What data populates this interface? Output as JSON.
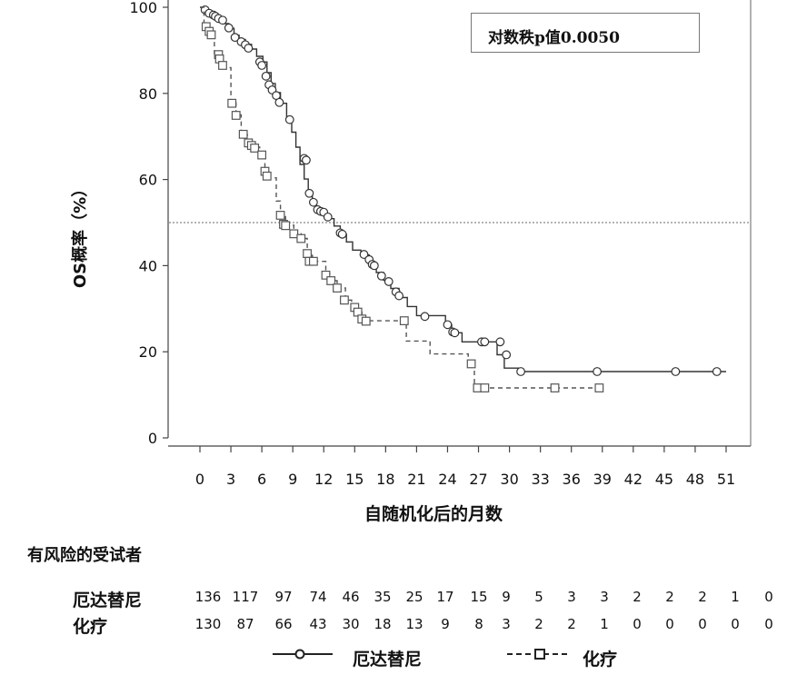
{
  "chart_data": {
    "type": "line",
    "title": "",
    "xlabel": "自随机化后的月数",
    "ylabel": "OS概率（%）",
    "xlim": [
      0,
      51
    ],
    "ylim": [
      0,
      100
    ],
    "x_ticks": [
      0,
      3,
      6,
      9,
      12,
      15,
      18,
      21,
      24,
      27,
      30,
      33,
      36,
      39,
      42,
      45,
      48,
      51
    ],
    "y_ticks": [
      0,
      20,
      40,
      60,
      80,
      100
    ],
    "reference_line": 50,
    "annotation": "对数秩p值0.0050",
    "series": [
      {
        "name": "厄达替尼",
        "color": "#333333",
        "dash": "solid",
        "marker": "circle",
        "step": [
          [
            0,
            100
          ],
          [
            0.4,
            100
          ],
          [
            0.4,
            99.4
          ],
          [
            0.8,
            99.4
          ],
          [
            0.8,
            98.6
          ],
          [
            1.2,
            98.6
          ],
          [
            1.2,
            97.9
          ],
          [
            1.7,
            97.9
          ],
          [
            1.7,
            97.1
          ],
          [
            2.3,
            97.1
          ],
          [
            2.3,
            96.2
          ],
          [
            2.8,
            96.2
          ],
          [
            2.8,
            95.1
          ],
          [
            3.3,
            95.1
          ],
          [
            3.3,
            93.5
          ],
          [
            3.8,
            93.5
          ],
          [
            3.8,
            92.5
          ],
          [
            4.4,
            92.5
          ],
          [
            4.4,
            91.4
          ],
          [
            5.0,
            91.4
          ],
          [
            5.0,
            90.3
          ],
          [
            5.5,
            90.3
          ],
          [
            5.5,
            88.6
          ],
          [
            6.1,
            88.6
          ],
          [
            6.1,
            87.3
          ],
          [
            6.5,
            87.3
          ],
          [
            6.5,
            84.8
          ],
          [
            6.9,
            84.8
          ],
          [
            6.9,
            82.3
          ],
          [
            7.3,
            82.3
          ],
          [
            7.3,
            80.2
          ],
          [
            7.8,
            80.2
          ],
          [
            7.8,
            77.7
          ],
          [
            8.4,
            77.7
          ],
          [
            8.4,
            74.4
          ],
          [
            8.9,
            74.4
          ],
          [
            8.9,
            71.0
          ],
          [
            9.3,
            71.0
          ],
          [
            9.3,
            67.5
          ],
          [
            9.7,
            67.5
          ],
          [
            9.7,
            63.5
          ],
          [
            10.1,
            63.5
          ],
          [
            10.1,
            60.1
          ],
          [
            10.5,
            60.1
          ],
          [
            10.5,
            56.5
          ],
          [
            10.9,
            56.5
          ],
          [
            10.9,
            54.5
          ],
          [
            11.3,
            54.5
          ],
          [
            11.3,
            53.2
          ],
          [
            11.8,
            53.2
          ],
          [
            11.8,
            52.0
          ],
          [
            12.4,
            52.0
          ],
          [
            12.4,
            50.9
          ],
          [
            13.0,
            50.9
          ],
          [
            13.0,
            49.2
          ],
          [
            13.6,
            49.2
          ],
          [
            13.6,
            47.3
          ],
          [
            14.2,
            47.3
          ],
          [
            14.2,
            45.5
          ],
          [
            14.8,
            45.5
          ],
          [
            14.8,
            43.6
          ],
          [
            15.6,
            43.6
          ],
          [
            15.6,
            42.5
          ],
          [
            16.4,
            42.5
          ],
          [
            16.4,
            40.6
          ],
          [
            17.1,
            40.6
          ],
          [
            17.1,
            38.4
          ],
          [
            17.8,
            38.4
          ],
          [
            17.8,
            36.6
          ],
          [
            18.5,
            36.6
          ],
          [
            18.5,
            34.7
          ],
          [
            19.3,
            34.7
          ],
          [
            19.3,
            32.6
          ],
          [
            20.1,
            32.6
          ],
          [
            20.1,
            30.5
          ],
          [
            21.0,
            30.5
          ],
          [
            21.0,
            28.4
          ],
          [
            23.8,
            28.4
          ],
          [
            23.8,
            26.3
          ],
          [
            24.4,
            26.3
          ],
          [
            24.4,
            24.4
          ],
          [
            25.4,
            24.4
          ],
          [
            25.4,
            22.3
          ],
          [
            28.8,
            22.3
          ],
          [
            28.8,
            19.3
          ],
          [
            29.5,
            19.3
          ],
          [
            29.5,
            16.2
          ],
          [
            31.0,
            16.2
          ],
          [
            31.0,
            15.4
          ],
          [
            51,
            15.4
          ]
        ],
        "markers": [
          [
            0.5,
            99.4
          ],
          [
            0.9,
            98.6
          ],
          [
            1.3,
            98.2
          ],
          [
            1.5,
            97.9
          ],
          [
            1.8,
            97.4
          ],
          [
            2.2,
            97.0
          ],
          [
            2.8,
            95.2
          ],
          [
            3.4,
            93.0
          ],
          [
            4.0,
            92.0
          ],
          [
            4.4,
            91.3
          ],
          [
            4.7,
            90.5
          ],
          [
            5.8,
            87.3
          ],
          [
            6.0,
            86.5
          ],
          [
            6.4,
            84.0
          ],
          [
            6.7,
            82.0
          ],
          [
            7.0,
            80.8
          ],
          [
            7.4,
            79.5
          ],
          [
            7.7,
            77.9
          ],
          [
            8.7,
            73.9
          ],
          [
            10.1,
            64.9
          ],
          [
            10.3,
            64.5
          ],
          [
            10.6,
            56.8
          ],
          [
            11.0,
            54.7
          ],
          [
            11.4,
            53.0
          ],
          [
            11.7,
            52.6
          ],
          [
            12.0,
            52.4
          ],
          [
            12.4,
            51.3
          ],
          [
            13.6,
            47.6
          ],
          [
            13.8,
            47.3
          ],
          [
            15.9,
            42.6
          ],
          [
            16.4,
            41.4
          ],
          [
            16.7,
            40.3
          ],
          [
            16.9,
            40.0
          ],
          [
            17.6,
            37.6
          ],
          [
            18.3,
            36.3
          ],
          [
            19.0,
            33.9
          ],
          [
            19.3,
            33.0
          ],
          [
            21.8,
            28.2
          ],
          [
            24.0,
            26.3
          ],
          [
            24.5,
            24.6
          ],
          [
            24.7,
            24.4
          ],
          [
            27.3,
            22.3
          ],
          [
            27.6,
            22.3
          ],
          [
            29.1,
            22.3
          ],
          [
            29.7,
            19.3
          ],
          [
            31.1,
            15.4
          ],
          [
            38.5,
            15.4
          ],
          [
            46.1,
            15.4
          ],
          [
            50.1,
            15.4
          ]
        ]
      },
      {
        "name": "化疗",
        "color": "#555555",
        "dash": "dashed",
        "marker": "square",
        "step": [
          [
            0,
            100
          ],
          [
            0.4,
            100
          ],
          [
            0.4,
            95.5
          ],
          [
            0.8,
            95.5
          ],
          [
            0.8,
            94.0
          ],
          [
            1.4,
            94.0
          ],
          [
            1.4,
            89.0
          ],
          [
            1.9,
            89.0
          ],
          [
            1.9,
            86.0
          ],
          [
            3.0,
            86.0
          ],
          [
            3.0,
            77.8
          ],
          [
            3.5,
            77.8
          ],
          [
            3.5,
            75.0
          ],
          [
            4.0,
            75.0
          ],
          [
            4.0,
            70.4
          ],
          [
            4.6,
            70.4
          ],
          [
            4.6,
            68.5
          ],
          [
            5.2,
            68.5
          ],
          [
            5.2,
            67.5
          ],
          [
            5.8,
            67.5
          ],
          [
            5.8,
            65.7
          ],
          [
            6.3,
            65.7
          ],
          [
            6.3,
            61.7
          ],
          [
            6.8,
            61.7
          ],
          [
            6.8,
            60.4
          ],
          [
            7.4,
            60.4
          ],
          [
            7.4,
            55.0
          ],
          [
            7.8,
            55.0
          ],
          [
            7.8,
            51.8
          ],
          [
            8.3,
            51.8
          ],
          [
            8.3,
            49.4
          ],
          [
            9.1,
            49.4
          ],
          [
            9.1,
            47.4
          ],
          [
            9.8,
            47.4
          ],
          [
            9.8,
            46.3
          ],
          [
            10.4,
            46.3
          ],
          [
            10.4,
            42.7
          ],
          [
            10.9,
            42.7
          ],
          [
            10.9,
            41.0
          ],
          [
            12.2,
            41.0
          ],
          [
            12.2,
            38.1
          ],
          [
            12.7,
            38.1
          ],
          [
            12.7,
            36.5
          ],
          [
            13.3,
            36.5
          ],
          [
            13.3,
            34.8
          ],
          [
            14.1,
            34.8
          ],
          [
            14.1,
            32.0
          ],
          [
            14.7,
            32.0
          ],
          [
            14.7,
            30.5
          ],
          [
            15.2,
            30.5
          ],
          [
            15.2,
            29.2
          ],
          [
            15.7,
            29.2
          ],
          [
            15.7,
            27.2
          ],
          [
            20.0,
            27.2
          ],
          [
            20.0,
            22.5
          ],
          [
            22.3,
            22.5
          ],
          [
            22.3,
            19.5
          ],
          [
            26.0,
            19.5
          ],
          [
            26.0,
            17.2
          ],
          [
            26.6,
            17.2
          ],
          [
            26.6,
            11.6
          ],
          [
            39,
            11.6
          ]
        ],
        "markers": [
          [
            0.6,
            95.5
          ],
          [
            0.9,
            94.4
          ],
          [
            1.1,
            93.6
          ],
          [
            1.8,
            89.0
          ],
          [
            1.9,
            88.0
          ],
          [
            2.2,
            86.5
          ],
          [
            3.1,
            77.7
          ],
          [
            3.5,
            74.9
          ],
          [
            4.2,
            70.5
          ],
          [
            4.7,
            68.5
          ],
          [
            5.0,
            67.9
          ],
          [
            5.3,
            67.3
          ],
          [
            6.0,
            65.7
          ],
          [
            6.3,
            61.9
          ],
          [
            6.5,
            60.8
          ],
          [
            7.8,
            51.7
          ],
          [
            8.1,
            49.6
          ],
          [
            8.3,
            49.3
          ],
          [
            9.1,
            47.4
          ],
          [
            9.8,
            46.3
          ],
          [
            10.4,
            42.8
          ],
          [
            10.6,
            41.0
          ],
          [
            11.0,
            41.0
          ],
          [
            12.2,
            37.8
          ],
          [
            12.7,
            36.5
          ],
          [
            13.3,
            34.8
          ],
          [
            14.0,
            32.0
          ],
          [
            15.0,
            30.3
          ],
          [
            15.3,
            29.2
          ],
          [
            15.7,
            27.6
          ],
          [
            16.1,
            27.1
          ],
          [
            19.8,
            27.2
          ],
          [
            26.3,
            17.2
          ],
          [
            26.9,
            11.6
          ],
          [
            27.6,
            11.6
          ],
          [
            34.4,
            11.6
          ],
          [
            38.7,
            11.6
          ]
        ]
      }
    ]
  },
  "risk_table": {
    "title": "有风险的受试者",
    "rows": [
      {
        "label": "厄达替尼",
        "values": [
          "136",
          "117",
          "97",
          "74",
          "46",
          "35",
          "25",
          "17",
          "15",
          "9",
          "5",
          "3",
          "3",
          "2",
          "2",
          "2",
          "1",
          "0"
        ]
      },
      {
        "label": "化疗",
        "values": [
          "130",
          "87",
          "66",
          "43",
          "30",
          "18",
          "13",
          "9",
          "8",
          "3",
          "2",
          "2",
          "1",
          "0",
          "0",
          "0",
          "0",
          "0"
        ]
      }
    ]
  },
  "legend": {
    "items": [
      {
        "label": "厄达替尼",
        "marker": "circle",
        "dash": "solid"
      },
      {
        "label": "化疗",
        "marker": "square",
        "dash": "dashed"
      }
    ]
  }
}
